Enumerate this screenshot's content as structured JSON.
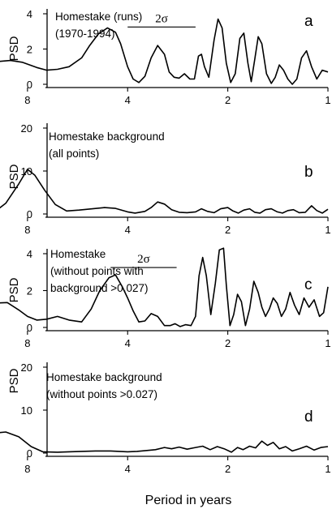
{
  "xlabel": "Period in years",
  "chart_data": [
    {
      "type": "line",
      "panel": "a",
      "title_lines": [
        "Homestake (runs)",
        "(1970-1994)"
      ],
      "ylabel": "PSD",
      "xlim": [
        13.5,
        1
      ],
      "ylim": [
        0,
        4
      ],
      "x_ticks": [
        8,
        4,
        2,
        1
      ],
      "y_ticks": [
        0,
        2,
        4
      ],
      "annotation": {
        "label": "2σ",
        "x_from": 4,
        "x_to": 2.5,
        "y": 3.25
      },
      "x": [
        13.5,
        12,
        10.5,
        9,
        8.3,
        7.5,
        7.0,
        6.5,
        6.0,
        5.5,
        5.2,
        4.9,
        4.6,
        4.35,
        4.2,
        4.0,
        3.85,
        3.7,
        3.55,
        3.4,
        3.25,
        3.1,
        3.0,
        2.9,
        2.8,
        2.7,
        2.6,
        2.52,
        2.45,
        2.4,
        2.35,
        2.28,
        2.2,
        2.14,
        2.08,
        2.02,
        1.96,
        1.9,
        1.84,
        1.79,
        1.74,
        1.7,
        1.66,
        1.62,
        1.58,
        1.53,
        1.48,
        1.44,
        1.4,
        1.36,
        1.32,
        1.28,
        1.24,
        1.2,
        1.16,
        1.12,
        1.08,
        1.04,
        1.0
      ],
      "y": [
        0.5,
        0.85,
        1.25,
        1.35,
        1.25,
        0.95,
        0.8,
        0.85,
        1.0,
        1.5,
        2.2,
        2.85,
        3.2,
        2.95,
        2.3,
        1.0,
        0.3,
        0.1,
        0.45,
        1.5,
        2.2,
        1.7,
        0.7,
        0.4,
        0.35,
        0.6,
        0.3,
        0.3,
        1.6,
        1.7,
        1.0,
        0.4,
        2.5,
        3.7,
        3.2,
        1.2,
        0.1,
        0.6,
        2.6,
        2.9,
        1.2,
        0.15,
        1.4,
        2.7,
        2.3,
        0.6,
        0.05,
        0.4,
        1.1,
        0.8,
        0.3,
        0.0,
        0.3,
        1.5,
        1.9,
        1.0,
        0.3,
        0.8,
        0.7
      ]
    },
    {
      "type": "line",
      "panel": "b",
      "title_lines": [
        "Homestake background",
        "(all points)"
      ],
      "ylabel": "PSD",
      "xlim": [
        13.5,
        1
      ],
      "ylim": [
        0,
        20
      ],
      "x_ticks": [
        8,
        4,
        2,
        1
      ],
      "y_ticks": [
        0,
        10,
        20
      ],
      "x": [
        13.5,
        12,
        11,
        10,
        9.3,
        8.5,
        8.0,
        7.6,
        7.1,
        6.6,
        6.1,
        5.6,
        5.1,
        4.7,
        4.35,
        4.0,
        3.8,
        3.55,
        3.4,
        3.25,
        3.1,
        2.95,
        2.8,
        2.65,
        2.5,
        2.4,
        2.3,
        2.2,
        2.1,
        2.0,
        1.93,
        1.86,
        1.79,
        1.72,
        1.66,
        1.6,
        1.54,
        1.48,
        1.42,
        1.37,
        1.32,
        1.27,
        1.22,
        1.17,
        1.12,
        1.08,
        1.04,
        1.0
      ],
      "y": [
        0.2,
        0.2,
        0.3,
        0.6,
        2.5,
        7.0,
        10.4,
        9.0,
        5.5,
        2.2,
        0.7,
        0.9,
        1.2,
        1.5,
        1.3,
        0.5,
        0.2,
        0.6,
        1.5,
        2.8,
        2.3,
        1.0,
        0.4,
        0.3,
        0.5,
        1.2,
        0.6,
        0.3,
        1.2,
        1.5,
        0.7,
        0.2,
        0.9,
        1.2,
        0.4,
        0.2,
        1.0,
        1.2,
        0.5,
        0.2,
        0.8,
        1.0,
        0.3,
        0.4,
        1.9,
        0.8,
        0.2,
        1.1
      ]
    },
    {
      "type": "line",
      "panel": "c",
      "title_lines": [
        "Homestake",
        "(without points with",
        "background >0.027)"
      ],
      "ylabel": "PSD",
      "xlim": [
        13.5,
        1
      ],
      "ylim": [
        0,
        4
      ],
      "x_ticks": [
        8,
        4,
        2,
        1
      ],
      "y_ticks": [
        0,
        2,
        4
      ],
      "annotation": {
        "label": "2σ",
        "x_from": 4.5,
        "x_to": 2.85,
        "y": 3.25
      },
      "x": [
        13.5,
        12,
        10.5,
        9.2,
        8.5,
        8.0,
        7.5,
        7.0,
        6.5,
        6.0,
        5.5,
        5.15,
        4.85,
        4.55,
        4.35,
        4.15,
        4.0,
        3.85,
        3.7,
        3.55,
        3.4,
        3.25,
        3.1,
        2.98,
        2.88,
        2.78,
        2.68,
        2.58,
        2.5,
        2.44,
        2.38,
        2.32,
        2.25,
        2.18,
        2.12,
        2.06,
        2.02,
        1.97,
        1.92,
        1.87,
        1.82,
        1.77,
        1.72,
        1.67,
        1.62,
        1.58,
        1.54,
        1.5,
        1.46,
        1.42,
        1.38,
        1.34,
        1.3,
        1.26,
        1.22,
        1.18,
        1.14,
        1.1,
        1.06,
        1.03,
        1.0
      ],
      "y": [
        0.5,
        0.8,
        1.3,
        1.35,
        0.95,
        0.6,
        0.4,
        0.45,
        0.6,
        0.4,
        0.3,
        1.0,
        2.0,
        2.7,
        2.85,
        2.2,
        1.6,
        0.9,
        0.3,
        0.35,
        0.75,
        0.6,
        0.1,
        0.1,
        0.2,
        0.05,
        0.15,
        0.1,
        0.6,
        2.8,
        3.8,
        2.8,
        0.7,
        2.4,
        4.2,
        4.3,
        2.3,
        0.1,
        0.7,
        1.8,
        1.4,
        0.1,
        1.0,
        2.5,
        1.9,
        1.1,
        0.6,
        1.0,
        1.6,
        1.3,
        0.6,
        1.0,
        1.9,
        1.2,
        0.7,
        1.6,
        1.1,
        1.5,
        0.6,
        0.8,
        2.2
      ]
    },
    {
      "type": "line",
      "panel": "d",
      "title_lines": [
        "Homestake background",
        "(without points >0.027)"
      ],
      "ylabel": "PSD",
      "xlim": [
        13.5,
        1
      ],
      "ylim": [
        0,
        20
      ],
      "x_ticks": [
        8,
        4,
        2,
        1
      ],
      "y_ticks": [
        0,
        10,
        20
      ],
      "x": [
        13.5,
        12,
        10.5,
        9.3,
        8.5,
        7.8,
        7.2,
        6.5,
        6.0,
        5.5,
        5.0,
        4.5,
        4.0,
        3.75,
        3.5,
        3.3,
        3.1,
        2.95,
        2.8,
        2.65,
        2.5,
        2.38,
        2.26,
        2.15,
        2.05,
        1.95,
        1.87,
        1.8,
        1.72,
        1.65,
        1.58,
        1.52,
        1.46,
        1.4,
        1.34,
        1.28,
        1.22,
        1.16,
        1.1,
        1.05,
        1.0
      ],
      "y": [
        1.0,
        3.0,
        4.5,
        4.9,
        3.8,
        1.5,
        0.3,
        0.2,
        0.3,
        0.4,
        0.5,
        0.5,
        0.3,
        0.4,
        0.6,
        0.8,
        1.3,
        1.0,
        1.4,
        0.9,
        1.3,
        1.6,
        0.8,
        1.5,
        1.0,
        0.2,
        1.3,
        0.8,
        1.6,
        1.2,
        2.8,
        1.8,
        2.5,
        1.0,
        1.5,
        0.5,
        1.0,
        1.6,
        0.7,
        1.3,
        1.5
      ]
    }
  ]
}
